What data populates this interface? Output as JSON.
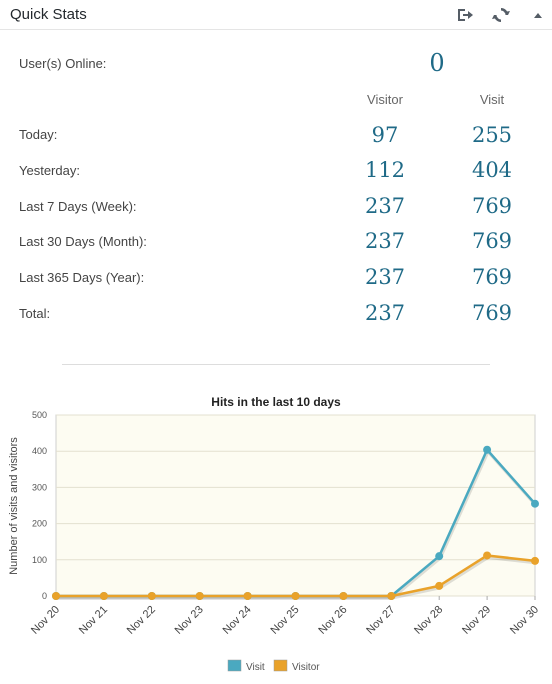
{
  "header": {
    "title": "Quick Stats"
  },
  "icons": {
    "export": "export-icon",
    "refresh": "refresh-icon",
    "collapse": "collapse-arrow-icon"
  },
  "stats": {
    "online_label": "User(s) Online:",
    "online_value": "0",
    "col_visitor": "Visitor",
    "col_visit": "Visit",
    "rows": [
      {
        "label": "Today:",
        "visitor": "97",
        "visit": "255"
      },
      {
        "label": "Yesterday:",
        "visitor": "112",
        "visit": "404"
      },
      {
        "label": "Last 7 Days (Week):",
        "visitor": "237",
        "visit": "769"
      },
      {
        "label": "Last 30 Days (Month):",
        "visitor": "237",
        "visit": "769"
      },
      {
        "label": "Last 365 Days (Year):",
        "visitor": "237",
        "visit": "769"
      },
      {
        "label": "Total:",
        "visitor": "237",
        "visit": "769"
      }
    ]
  },
  "colors": {
    "number": "#1f6a87",
    "visit": "#4aa9c0",
    "visitor": "#e9a22a",
    "plot_bg": "#fdfcf2"
  },
  "chart_data": {
    "type": "line",
    "title": "Hits in the last 10 days",
    "ylabel": "Number of visits and visitors",
    "xlabel": "",
    "categories": [
      "Nov 20",
      "Nov 21",
      "Nov 22",
      "Nov 23",
      "Nov 24",
      "Nov 25",
      "Nov 26",
      "Nov 27",
      "Nov 28",
      "Nov 29",
      "Nov 30"
    ],
    "ylim": [
      0,
      500
    ],
    "yticks": [
      0,
      100,
      200,
      300,
      400,
      500
    ],
    "grid": true,
    "legend": "bottom",
    "series": [
      {
        "name": "Visit",
        "color": "#4aa9c0",
        "values": [
          0,
          0,
          0,
          0,
          0,
          0,
          0,
          0,
          110,
          404,
          255
        ]
      },
      {
        "name": "Visitor",
        "color": "#e9a22a",
        "values": [
          0,
          0,
          0,
          0,
          0,
          0,
          0,
          0,
          28,
          112,
          97
        ]
      }
    ]
  }
}
